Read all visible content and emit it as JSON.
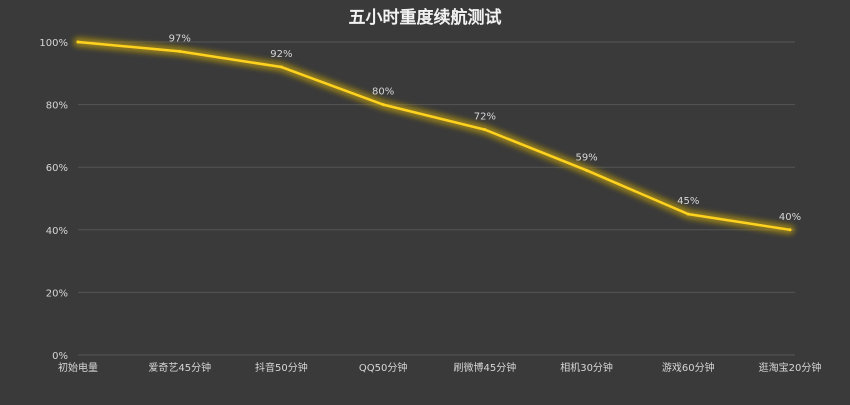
{
  "chart_data": {
    "type": "line",
    "title": "五小时重度续航测试",
    "xlabel": "",
    "ylabel": "",
    "categories": [
      "初始电量",
      "爱奇艺45分钟",
      "抖音50分钟",
      "QQ50分钟",
      "刷微博45分钟",
      "相机30分钟",
      "游戏60分钟",
      "逛淘宝20分钟"
    ],
    "series": [
      {
        "values": [
          100,
          97,
          92,
          80,
          72,
          59,
          45,
          40
        ],
        "data_labels": [
          "",
          "97%",
          "92%",
          "80%",
          "72%",
          "59%",
          "45%",
          "40%"
        ],
        "color": "#ffd21f"
      }
    ],
    "y_ticks": [
      "0%",
      "20%",
      "40%",
      "60%",
      "80%",
      "100%"
    ],
    "ylim": [
      0,
      100
    ],
    "grid": true,
    "legend": "none"
  },
  "colors": {
    "background": "#3a3a3a",
    "line": "#ffd21f",
    "glow": "#b99a10",
    "grid": "#555555",
    "text": "#d6d6d6"
  }
}
